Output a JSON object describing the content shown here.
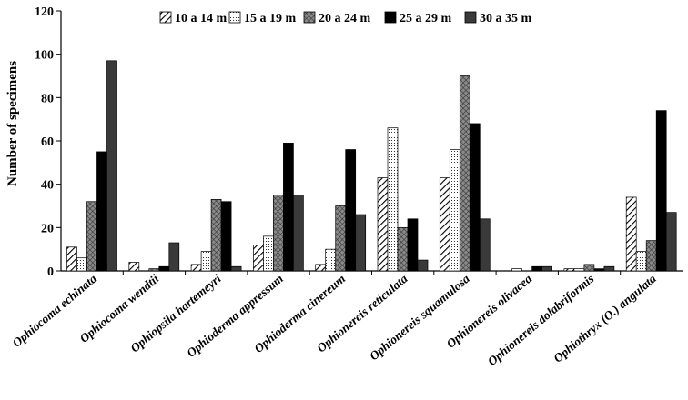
{
  "chart_data": {
    "type": "bar",
    "title": "",
    "xlabel": "",
    "ylabel": "Number of specimens",
    "ylim": [
      0,
      120
    ],
    "yticks": [
      "0",
      "20",
      "40",
      "60",
      "80",
      "100",
      "120"
    ],
    "grid": false,
    "legend_position": "top",
    "categories": [
      "Ophiocoma echinata",
      "Ophiocoma wendtii",
      "Ophiopsila hartemeyri",
      "Ophioderma appressum",
      "Ophioderma cinereum",
      "Ophionereis reticulata",
      "Ophionereis squamulosa",
      "Ophionereis olivacea",
      "Ophionereis dolabriformis",
      "Ophiothryx (O.) angulata"
    ],
    "series": [
      {
        "name": "10 a 14 m",
        "style": "hatch",
        "color": "#ffffff",
        "values": [
          11,
          4,
          3,
          12,
          3,
          43,
          43,
          0,
          1,
          34
        ]
      },
      {
        "name": "15 a 19 m",
        "style": "dots",
        "color": "#ffffff",
        "values": [
          6,
          0,
          9,
          16,
          10,
          66,
          56,
          1,
          1,
          9
        ]
      },
      {
        "name": "20 a 24 m",
        "style": "crosshatch",
        "color": "#777777",
        "values": [
          32,
          1,
          33,
          35,
          30,
          20,
          90,
          0,
          3,
          14
        ]
      },
      {
        "name": "25 a 29 m",
        "style": "solid",
        "color": "#000000",
        "values": [
          55,
          2,
          32,
          59,
          56,
          24,
          68,
          2,
          1,
          74
        ]
      },
      {
        "name": "30 a 35 m",
        "style": "solid",
        "color": "#3a3a3a",
        "values": [
          97,
          13,
          2,
          35,
          26,
          5,
          24,
          2,
          2,
          27
        ]
      }
    ]
  }
}
